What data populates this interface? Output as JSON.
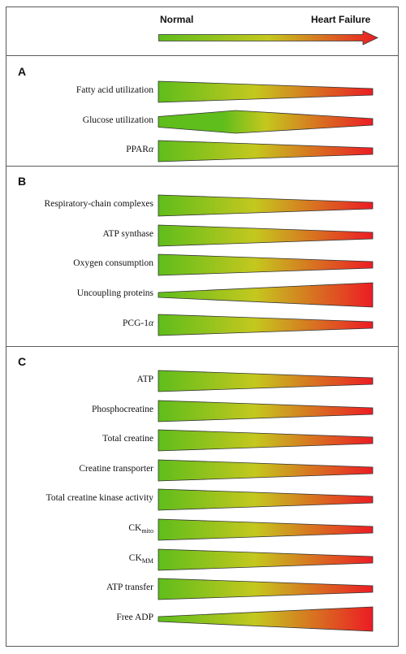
{
  "legend": {
    "start_label": "Normal",
    "end_label": "Heart Failure",
    "colors": {
      "normal": "#5fbd1c",
      "mid": "#c4c81e",
      "failure": "#ec1c24"
    }
  },
  "panels": [
    {
      "letter": "A",
      "rows": [
        {
          "text": "Fatty acid utilization",
          "trend": "decrease"
        },
        {
          "text": "Glucose utilization",
          "trend": "increase-then-decrease"
        },
        {
          "text": "PPAR",
          "suffix": "α",
          "trend": "decrease"
        }
      ]
    },
    {
      "letter": "B",
      "rows": [
        {
          "text": "Respiratory-chain complexes",
          "trend": "decrease"
        },
        {
          "text": "ATP synthase",
          "trend": "decrease"
        },
        {
          "text": "Oxygen consumption",
          "trend": "decrease"
        },
        {
          "text": "Uncoupling proteins",
          "trend": "increase"
        },
        {
          "text": "PCG-1",
          "suffix": "α",
          "trend": "decrease"
        }
      ]
    },
    {
      "letter": "C",
      "rows": [
        {
          "text": "ATP",
          "trend": "decrease"
        },
        {
          "text": "Phosphocreatine",
          "trend": "decrease"
        },
        {
          "text": "Total creatine",
          "trend": "decrease"
        },
        {
          "text": "Creatine transporter",
          "trend": "decrease"
        },
        {
          "text": "Total creatine kinase activity",
          "trend": "decrease"
        },
        {
          "text": "CK",
          "subscript": "mito",
          "trend": "decrease"
        },
        {
          "text": "CK",
          "subscript": "MM",
          "trend": "decrease"
        },
        {
          "text": "ATP transfer",
          "trend": "decrease"
        },
        {
          "text": "Free ADP",
          "trend": "increase"
        }
      ]
    }
  ]
}
